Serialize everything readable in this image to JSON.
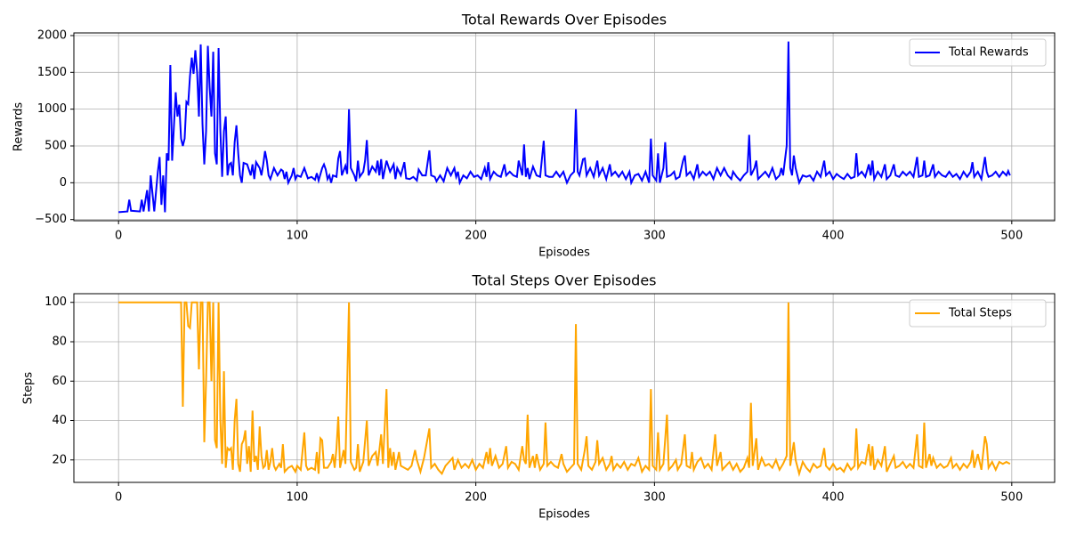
{
  "chart_data": [
    {
      "type": "line",
      "title": "Total Rewards Over Episodes",
      "xlabel": "Episodes",
      "ylabel": "Rewards",
      "x": [
        0,
        5,
        6,
        7,
        12,
        13,
        14,
        16,
        17,
        18,
        20,
        22,
        23,
        24,
        25,
        26,
        27,
        28,
        29,
        30,
        32,
        33,
        34,
        35,
        36,
        37,
        38,
        39,
        40,
        41,
        42,
        43,
        44,
        45,
        46,
        47,
        48,
        49,
        50,
        51,
        52,
        53,
        54,
        55,
        56,
        57,
        58,
        59,
        60,
        61,
        62,
        63,
        64,
        65,
        66,
        67,
        68,
        69,
        70,
        72,
        74,
        75,
        76,
        77,
        79,
        80,
        81,
        82,
        83,
        84,
        85,
        87,
        89,
        91,
        92,
        93,
        94,
        95,
        97,
        98,
        99,
        100,
        102,
        104,
        106,
        108,
        110,
        111,
        112,
        114,
        115,
        116,
        117,
        118,
        119,
        120,
        122,
        123,
        124,
        125,
        127,
        128,
        129,
        130,
        132,
        133,
        134,
        135,
        137,
        138,
        139,
        140,
        142,
        144,
        145,
        146,
        147,
        148,
        150,
        152,
        154,
        155,
        156,
        158,
        160,
        161,
        163,
        165,
        167,
        168,
        170,
        172,
        174,
        175,
        177,
        178,
        180,
        182,
        184,
        186,
        188,
        189,
        190,
        191,
        193,
        195,
        197,
        199,
        201,
        203,
        205,
        206,
        207,
        208,
        210,
        212,
        214,
        216,
        217,
        219,
        221,
        223,
        224,
        225,
        226,
        227,
        228,
        229,
        230,
        232,
        234,
        236,
        238,
        239,
        241,
        243,
        245,
        247,
        249,
        251,
        253,
        255,
        256,
        257,
        258,
        260,
        261,
        262,
        264,
        266,
        268,
        269,
        271,
        273,
        275,
        276,
        278,
        280,
        282,
        284,
        286,
        287,
        289,
        291,
        293,
        295,
        297,
        298,
        299,
        301,
        302,
        303,
        305,
        306,
        307,
        309,
        311,
        312,
        314,
        316,
        317,
        318,
        320,
        322,
        324,
        325,
        327,
        329,
        331,
        333,
        335,
        337,
        339,
        341,
        343,
        344,
        346,
        348,
        350,
        352,
        353,
        354,
        356,
        357,
        358,
        360,
        362,
        364,
        366,
        368,
        370,
        371,
        372,
        373,
        374,
        375,
        376,
        377,
        378,
        379,
        381,
        383,
        385,
        387,
        389,
        391,
        393,
        395,
        396,
        398,
        400,
        402,
        404,
        406,
        408,
        410,
        412,
        413,
        414,
        416,
        418,
        420,
        421,
        422,
        423,
        425,
        427,
        429,
        430,
        432,
        434,
        435,
        437,
        439,
        441,
        443,
        445,
        447,
        448,
        450,
        451,
        452,
        454,
        456,
        457,
        459,
        461,
        463,
        465,
        467,
        469,
        471,
        473,
        475,
        477,
        478,
        479,
        481,
        483,
        485,
        486,
        487,
        489,
        491,
        493,
        495,
        497,
        498,
        499
      ],
      "series": [
        {
          "name": "Total Rewards",
          "color": "#0000ff",
          "values": [
            -400,
            -390,
            -230,
            -380,
            -390,
            -230,
            -390,
            -100,
            -390,
            100,
            -390,
            150,
            350,
            -300,
            100,
            -400,
            400,
            300,
            1600,
            300,
            1230,
            900,
            1060,
            600,
            500,
            600,
            1100,
            1070,
            1450,
            1700,
            1480,
            1800,
            1500,
            900,
            1880,
            800,
            250,
            700,
            1860,
            1300,
            900,
            1780,
            400,
            250,
            1830,
            700,
            80,
            700,
            900,
            100,
            250,
            270,
            100,
            550,
            780,
            400,
            100,
            0,
            270,
            250,
            100,
            250,
            50,
            280,
            200,
            100,
            250,
            430,
            300,
            100,
            50,
            200,
            100,
            180,
            160,
            50,
            150,
            0,
            100,
            200,
            50,
            100,
            80,
            200,
            60,
            80,
            40,
            130,
            30,
            200,
            250,
            180,
            50,
            100,
            0,
            100,
            80,
            330,
            430,
            100,
            230,
            120,
            1000,
            200,
            100,
            20,
            300,
            80,
            150,
            300,
            580,
            100,
            220,
            150,
            300,
            100,
            320,
            50,
            300,
            150,
            250,
            50,
            200,
            100,
            280,
            60,
            50,
            80,
            30,
            180,
            100,
            100,
            440,
            100,
            80,
            20,
            100,
            20,
            200,
            100,
            200,
            80,
            150,
            0,
            100,
            60,
            150,
            80,
            100,
            50,
            200,
            80,
            280,
            50,
            150,
            100,
            80,
            250,
            100,
            150,
            100,
            80,
            300,
            200,
            100,
            520,
            80,
            200,
            50,
            220,
            100,
            80,
            570,
            100,
            80,
            80,
            150,
            80,
            150,
            0,
            100,
            150,
            1000,
            150,
            100,
            320,
            330,
            100,
            200,
            80,
            300,
            100,
            200,
            50,
            250,
            100,
            150,
            80,
            150,
            50,
            150,
            0,
            100,
            120,
            30,
            150,
            0,
            600,
            100,
            30,
            400,
            0,
            200,
            550,
            80,
            100,
            150,
            50,
            80,
            300,
            370,
            100,
            150,
            50,
            250,
            80,
            150,
            100,
            150,
            50,
            200,
            100,
            200,
            100,
            50,
            150,
            80,
            30,
            100,
            150,
            650,
            100,
            200,
            300,
            50,
            100,
            150,
            80,
            200,
            50,
            100,
            200,
            100,
            300,
            500,
            1920,
            200,
            100,
            370,
            200,
            0,
            100,
            80,
            100,
            30,
            150,
            80,
            300,
            100,
            150,
            50,
            120,
            80,
            50,
            120,
            60,
            80,
            400,
            100,
            150,
            80,
            250,
            100,
            300,
            50,
            150,
            80,
            250,
            50,
            100,
            250,
            100,
            80,
            150,
            100,
            150,
            80,
            350,
            80,
            100,
            300,
            80,
            100,
            250,
            80,
            150,
            100,
            80,
            150,
            80,
            120,
            50,
            150,
            80,
            150,
            280,
            80,
            150,
            50,
            350,
            150,
            80,
            100,
            150,
            80,
            150,
            100,
            160,
            100
          ]
        }
      ],
      "xlim": [
        -25,
        524
      ],
      "ylim": [
        -516,
        2036
      ],
      "xticks": [
        0,
        100,
        200,
        300,
        400,
        500
      ],
      "yticks": [
        {
          "value": -500,
          "label": "−500"
        },
        0,
        500,
        1000,
        1500,
        2000
      ],
      "grid": true,
      "legend": "upper right"
    },
    {
      "type": "line",
      "title": "Total Steps Over Episodes",
      "xlabel": "Episodes",
      "ylabel": "Steps",
      "x": [
        0,
        35,
        36,
        37,
        38,
        39,
        40,
        41,
        43,
        44,
        45,
        46,
        47,
        48,
        49,
        50,
        51,
        52,
        53,
        54,
        55,
        56,
        57,
        58,
        59,
        60,
        61,
        62,
        63,
        64,
        65,
        66,
        67,
        68,
        69,
        70,
        71,
        72,
        73,
        74,
        75,
        76,
        77,
        78,
        79,
        80,
        81,
        82,
        83,
        84,
        85,
        86,
        87,
        88,
        90,
        91,
        92,
        93,
        95,
        97,
        99,
        100,
        102,
        104,
        105,
        106,
        108,
        110,
        111,
        112,
        113,
        114,
        115,
        117,
        119,
        120,
        121,
        122,
        123,
        124,
        126,
        127,
        129,
        130,
        132,
        133,
        134,
        135,
        137,
        139,
        140,
        142,
        144,
        145,
        147,
        148,
        150,
        151,
        152,
        153,
        154,
        155,
        157,
        158,
        160,
        162,
        164,
        166,
        167,
        169,
        171,
        174,
        175,
        177,
        179,
        181,
        183,
        185,
        187,
        188,
        190,
        192,
        194,
        196,
        198,
        200,
        202,
        204,
        206,
        207,
        208,
        209,
        211,
        213,
        215,
        217,
        218,
        220,
        222,
        224,
        226,
        227,
        228,
        229,
        230,
        232,
        233,
        234,
        236,
        238,
        239,
        240,
        242,
        244,
        246,
        248,
        249,
        251,
        253,
        255,
        256,
        257,
        259,
        261,
        262,
        263,
        265,
        267,
        268,
        269,
        271,
        273,
        275,
        276,
        277,
        279,
        281,
        283,
        285,
        287,
        289,
        291,
        293,
        295,
        297,
        298,
        299,
        301,
        302,
        303,
        305,
        307,
        308,
        310,
        312,
        313,
        315,
        317,
        318,
        320,
        321,
        322,
        324,
        326,
        328,
        330,
        332,
        334,
        335,
        337,
        338,
        340,
        342,
        344,
        346,
        348,
        350,
        352,
        353,
        354,
        355,
        357,
        358,
        360,
        362,
        364,
        366,
        368,
        370,
        372,
        374,
        375,
        376,
        378,
        379,
        381,
        383,
        385,
        387,
        389,
        391,
        393,
        395,
        396,
        398,
        400,
        402,
        404,
        406,
        408,
        410,
        412,
        413,
        414,
        416,
        418,
        420,
        421,
        422,
        423,
        425,
        427,
        429,
        430,
        432,
        434,
        435,
        437,
        439,
        441,
        443,
        445,
        447,
        448,
        450,
        451,
        452,
        454,
        455,
        456,
        458,
        460,
        462,
        464,
        466,
        467,
        469,
        471,
        473,
        475,
        477,
        478,
        479,
        481,
        483,
        485,
        486,
        487,
        489,
        491,
        493,
        495,
        497,
        499
      ],
      "series": [
        {
          "name": "Total Steps",
          "color": "#ffa500",
          "values": [
            100,
            100,
            47,
            100,
            100,
            88,
            87,
            100,
            100,
            100,
            66,
            100,
            100,
            29,
            60,
            100,
            100,
            60,
            100,
            30,
            26,
            100,
            40,
            18,
            65,
            16,
            26,
            25,
            26,
            15,
            40,
            51,
            18,
            14,
            28,
            30,
            35,
            18,
            27,
            14,
            45,
            19,
            22,
            15,
            37,
            22,
            16,
            17,
            25,
            15,
            19,
            26,
            17,
            15,
            18,
            16,
            28,
            14,
            16,
            17,
            14,
            17,
            15,
            34,
            17,
            15,
            16,
            15,
            24,
            13,
            31,
            30,
            16,
            16,
            19,
            23,
            16,
            26,
            42,
            16,
            25,
            18,
            100,
            19,
            15,
            16,
            28,
            14,
            19,
            40,
            17,
            22,
            24,
            17,
            33,
            18,
            56,
            16,
            26,
            17,
            24,
            15,
            24,
            17,
            16,
            15,
            17,
            25,
            20,
            14,
            21,
            36,
            16,
            18,
            15,
            13,
            17,
            19,
            21,
            15,
            20,
            16,
            18,
            16,
            20,
            15,
            18,
            16,
            24,
            18,
            26,
            17,
            22,
            16,
            18,
            27,
            16,
            19,
            18,
            15,
            27,
            20,
            18,
            43,
            16,
            22,
            16,
            23,
            15,
            18,
            39,
            17,
            19,
            17,
            16,
            23,
            18,
            14,
            16,
            18,
            89,
            18,
            15,
            25,
            32,
            17,
            15,
            19,
            30,
            18,
            21,
            15,
            18,
            22,
            15,
            18,
            16,
            19,
            15,
            18,
            17,
            21,
            14,
            17,
            15,
            56,
            17,
            15,
            34,
            15,
            18,
            43,
            15,
            17,
            20,
            15,
            18,
            33,
            17,
            16,
            24,
            15,
            19,
            21,
            16,
            18,
            15,
            33,
            17,
            24,
            15,
            17,
            19,
            15,
            18,
            14,
            16,
            21,
            16,
            49,
            17,
            31,
            15,
            21,
            17,
            18,
            16,
            20,
            15,
            18,
            22,
            100,
            17,
            29,
            20,
            13,
            19,
            16,
            14,
            18,
            16,
            17,
            26,
            17,
            15,
            18,
            15,
            16,
            14,
            18,
            15,
            17,
            36,
            16,
            19,
            18,
            28,
            17,
            27,
            15,
            20,
            17,
            27,
            14,
            18,
            22,
            16,
            17,
            19,
            16,
            18,
            16,
            33,
            17,
            16,
            39,
            16,
            23,
            17,
            21,
            16,
            18,
            16,
            17,
            21,
            16,
            18,
            15,
            18,
            16,
            19,
            25,
            16,
            23,
            15,
            32,
            28,
            16,
            19,
            15,
            19,
            18,
            19,
            18
          ]
        }
      ],
      "xlim": [
        -25,
        524
      ],
      "ylim": [
        8.6,
        104.4
      ],
      "xticks": [
        0,
        100,
        200,
        300,
        400,
        500
      ],
      "yticks": [
        20,
        40,
        60,
        80,
        100
      ],
      "grid": true,
      "legend": "upper right"
    }
  ]
}
